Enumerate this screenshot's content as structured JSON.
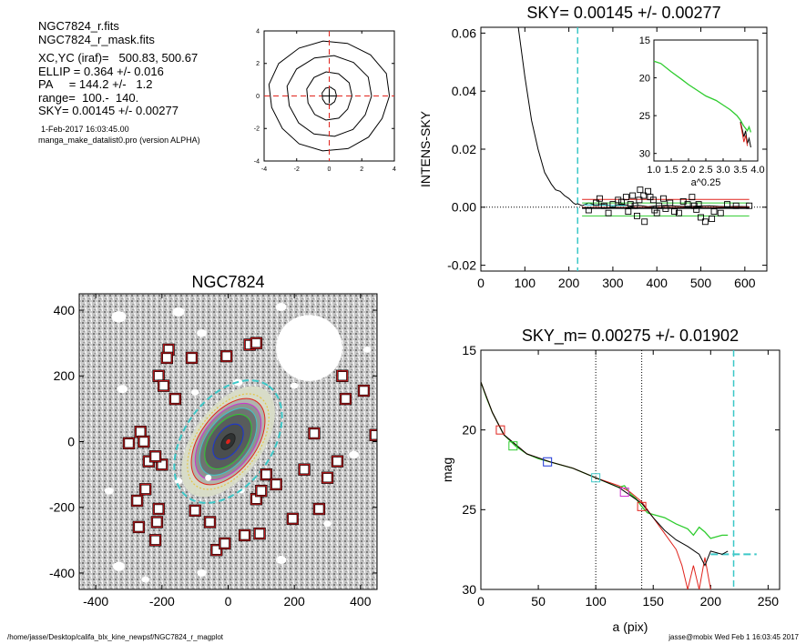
{
  "info": {
    "lines": [
      "NGC7824_r.fits",
      "NGC7824_r_mask.fits",
      "XC,YC (iraf)=   500.83, 500.67",
      "ELLIP = 0.364 +/- 0.016",
      "PA     = 144.2 +/-   1.2",
      "range=  100.-  140.",
      "SKY= 0.00145 +/- 0.00277"
    ],
    "date": "1-Feb-2017 16:03:45.00",
    "program": "manga_make_datalist0.pro (version ALPHA)"
  },
  "footer": {
    "path": "/home/jasse/Desktop/califa_blx_kine_newpsf/NGC7824_r_magplot",
    "stamp": "jasse@mobix  Wed Feb  1 16:03:45 2017"
  },
  "colors": {
    "red": "#e0231c",
    "green": "#2ecc2e",
    "cyan": "#3cc8c8",
    "black": "#000000",
    "blue": "#1a35d6",
    "magenta": "#d030d0"
  },
  "chart_data": [
    {
      "type": "contour",
      "id": "centroid",
      "xlim": [
        -4,
        4
      ],
      "ylim": [
        -4,
        4
      ],
      "xticks": [
        -4,
        -2,
        0,
        2,
        4
      ],
      "yticks": [
        -4,
        -2,
        0,
        2,
        4
      ],
      "crosshair": {
        "x": 0,
        "y": 0,
        "color": "red",
        "style": "dashed"
      },
      "contours": [
        {
          "rx": 0.45,
          "ry": 0.55
        },
        {
          "rx": 1.4,
          "ry": 1.5
        },
        {
          "rx": 2.6,
          "ry": 2.5
        },
        {
          "rx": 3.7,
          "ry": 3.4
        }
      ]
    },
    {
      "type": "scatter",
      "id": "sky",
      "title": "SKY= 0.00145 +/- 0.00277",
      "xlabel": "",
      "ylabel": "INTENS-SKY",
      "xlim": [
        0,
        650
      ],
      "ylim": [
        -0.022,
        0.062
      ],
      "xticks": [
        0,
        100,
        200,
        300,
        400,
        500,
        600
      ],
      "yticks": [
        -0.02,
        0.0,
        0.02,
        0.04,
        0.06
      ],
      "ytick_labels": [
        "-0.02",
        "0.00",
        "0.02",
        "0.04",
        "0.06"
      ],
      "sky_level": 0.00145,
      "sky_err": 0.00277,
      "cyan_vline": 220,
      "profile": [
        [
          85,
          0.062
        ],
        [
          100,
          0.045
        ],
        [
          115,
          0.03
        ],
        [
          130,
          0.02
        ],
        [
          145,
          0.012
        ],
        [
          160,
          0.008
        ],
        [
          170,
          0.006
        ],
        [
          180,
          0.0055
        ],
        [
          190,
          0.004
        ],
        [
          200,
          0.003
        ],
        [
          210,
          0.0015
        ],
        [
          215,
          0.001
        ],
        [
          220,
          0.0012
        ],
        [
          230,
          0.0005
        ],
        [
          245,
          0.0015
        ],
        [
          260,
          0.0008
        ],
        [
          280,
          0.001
        ],
        [
          300,
          0.0005
        ],
        [
          320,
          0.0012
        ],
        [
          340,
          0.0004
        ],
        [
          360,
          0.0006
        ],
        [
          380,
          0.0002
        ],
        [
          400,
          0.0005
        ],
        [
          420,
          0.0006
        ],
        [
          440,
          0.0004
        ],
        [
          460,
          0.0003
        ],
        [
          480,
          0.0003
        ],
        [
          500,
          0.0004
        ],
        [
          520,
          0.0005
        ],
        [
          540,
          0.0003
        ],
        [
          560,
          0.0002
        ],
        [
          580,
          0.0003
        ],
        [
          610,
          0.0002
        ]
      ],
      "points": [
        [
          245,
          -0.001
        ],
        [
          262,
          0.0015
        ],
        [
          270,
          0.003
        ],
        [
          280,
          0.0005
        ],
        [
          290,
          -0.002
        ],
        [
          300,
          0.001
        ],
        [
          312,
          0.0025
        ],
        [
          320,
          0.0018
        ],
        [
          330,
          0.0035
        ],
        [
          335,
          -0.0015
        ],
        [
          340,
          0.001
        ],
        [
          345,
          0.004
        ],
        [
          350,
          0.0005
        ],
        [
          355,
          -0.003
        ],
        [
          360,
          0.0025
        ],
        [
          362,
          0.006
        ],
        [
          370,
          0.004
        ],
        [
          372,
          -0.005
        ],
        [
          380,
          0.0055
        ],
        [
          385,
          0.0035
        ],
        [
          392,
          0.0025
        ],
        [
          395,
          -0.001
        ],
        [
          400,
          -0.002
        ],
        [
          405,
          0.0005
        ],
        [
          415,
          0.003
        ],
        [
          420,
          -0.0005
        ],
        [
          430,
          0.0015
        ],
        [
          440,
          -0.0015
        ],
        [
          450,
          -0.002
        ],
        [
          460,
          0.002
        ],
        [
          470,
          0.001
        ],
        [
          480,
          0.0035
        ],
        [
          485,
          0.0005
        ],
        [
          490,
          -0.0008
        ],
        [
          495,
          0.001
        ],
        [
          500,
          -0.0035
        ],
        [
          510,
          -0.005
        ],
        [
          525,
          -0.004
        ],
        [
          530,
          -0.0015
        ],
        [
          545,
          -0.002
        ],
        [
          560,
          0.001
        ],
        [
          580,
          0.0005
        ],
        [
          610,
          0.0005
        ]
      ],
      "inset": {
        "xlabel": "a^0.25",
        "xlim": [
          1.0,
          4.0
        ],
        "ylim": [
          15,
          31
        ],
        "xtick_labels": [
          "1.0",
          "1.5",
          "2.0",
          "2.5",
          "3.0",
          "3.5",
          "4.0"
        ],
        "ytick_labels": [
          "15",
          "20",
          "25",
          "30"
        ],
        "yticks": [
          15,
          20,
          25,
          30
        ],
        "green": [
          [
            1.0,
            17.8
          ],
          [
            1.2,
            18.1
          ],
          [
            1.5,
            19.2
          ],
          [
            1.8,
            20.2
          ],
          [
            2.0,
            20.9
          ],
          [
            2.2,
            21.5
          ],
          [
            2.5,
            22.4
          ],
          [
            2.8,
            23.0
          ],
          [
            3.0,
            23.6
          ],
          [
            3.2,
            24.2
          ],
          [
            3.4,
            25.0
          ],
          [
            3.5,
            25.6
          ],
          [
            3.6,
            26.4
          ],
          [
            3.7,
            27.0
          ],
          [
            3.75,
            26.5
          ],
          [
            3.8,
            27.2
          ]
        ],
        "black": [
          [
            3.5,
            25.8
          ],
          [
            3.55,
            26.8
          ],
          [
            3.6,
            27.8
          ],
          [
            3.65,
            27.0
          ],
          [
            3.7,
            28.7
          ],
          [
            3.75,
            28.0
          ],
          [
            3.8,
            29.2
          ]
        ],
        "red": [
          [
            3.5,
            26.0
          ],
          [
            3.55,
            27.2
          ],
          [
            3.6,
            28.5
          ],
          [
            3.65,
            27.6
          ],
          [
            3.7,
            29.0
          ]
        ]
      }
    },
    {
      "type": "image",
      "id": "galaxy",
      "title": "NGC7824",
      "xlim": [
        -450,
        450
      ],
      "ylim": [
        -450,
        450
      ],
      "xticks": [
        -400,
        -200,
        0,
        200,
        400
      ],
      "yticks": [
        -400,
        -200,
        0,
        200,
        400
      ],
      "ellipse": {
        "a": 160,
        "b": 102,
        "pa_deg": 144.2,
        "color": "cyan",
        "style": "dashed"
      },
      "masked_stars": [
        [
          -300,
          -5
        ],
        [
          -265,
          30
        ],
        [
          -240,
          -60
        ],
        [
          -255,
          0
        ],
        [
          -250,
          -145
        ],
        [
          -275,
          -180
        ],
        [
          -210,
          200
        ],
        [
          -195,
          170
        ],
        [
          -200,
          -70
        ],
        [
          -220,
          -45
        ],
        [
          -210,
          -205
        ],
        [
          -215,
          -245
        ],
        [
          -270,
          -260
        ],
        [
          -220,
          -300
        ],
        [
          -180,
          280
        ],
        [
          -185,
          255
        ],
        [
          -160,
          130
        ],
        [
          -110,
          255
        ],
        [
          -100,
          -210
        ],
        [
          -55,
          -245
        ],
        [
          -35,
          -330
        ],
        [
          -10,
          -310
        ],
        [
          -5,
          260
        ],
        [
          50,
          -285
        ],
        [
          65,
          295
        ],
        [
          85,
          300
        ],
        [
          95,
          -280
        ],
        [
          85,
          -175
        ],
        [
          100,
          -150
        ],
        [
          115,
          -100
        ],
        [
          145,
          -130
        ],
        [
          195,
          -235
        ],
        [
          230,
          -85
        ],
        [
          260,
          25
        ],
        [
          275,
          -205
        ],
        [
          300,
          -110
        ],
        [
          330,
          -60
        ],
        [
          345,
          200
        ],
        [
          355,
          130
        ],
        [
          410,
          155
        ],
        [
          445,
          20
        ]
      ],
      "bright_star_disk": {
        "x": 245,
        "y": 285,
        "r": 100
      }
    },
    {
      "type": "line",
      "id": "mag",
      "title": "SKY_m=  0.00275 +/- 0.01902",
      "xlabel": "a (pix)",
      "ylabel": "mag",
      "xlim": [
        0,
        260
      ],
      "ylim": [
        15,
        30
      ],
      "xticks": [
        0,
        50,
        100,
        150,
        200,
        250
      ],
      "yticks": [
        15,
        20,
        25,
        30
      ],
      "inverted_y": true,
      "dotted_vlines": [
        100,
        140
      ],
      "cyan_vline": 220,
      "cyan_hseg": {
        "y": 27.8,
        "x0": 200,
        "x1": 240
      },
      "series": [
        {
          "color": "green",
          "values": [
            [
              0,
              17.0
            ],
            [
              5,
              18.0
            ],
            [
              10,
              18.9
            ],
            [
              15,
              19.6
            ],
            [
              20,
              20.3
            ],
            [
              30,
              21.0
            ],
            [
              40,
              21.5
            ],
            [
              50,
              21.8
            ],
            [
              60,
              22.0
            ],
            [
              70,
              22.2
            ],
            [
              80,
              22.4
            ],
            [
              90,
              22.7
            ],
            [
              100,
              23.0
            ],
            [
              110,
              23.3
            ],
            [
              120,
              23.6
            ],
            [
              125,
              23.5
            ],
            [
              130,
              24.0
            ],
            [
              135,
              24.3
            ],
            [
              140,
              24.8
            ],
            [
              145,
              25.2
            ],
            [
              150,
              25.3
            ],
            [
              160,
              25.5
            ],
            [
              170,
              25.9
            ],
            [
              180,
              26.2
            ],
            [
              185,
              26.6
            ],
            [
              190,
              26.1
            ],
            [
              195,
              26.4
            ],
            [
              200,
              26.8
            ],
            [
              210,
              26.6
            ],
            [
              215,
              26.6
            ]
          ]
        },
        {
          "color": "red",
          "values": [
            [
              0,
              17.0
            ],
            [
              10,
              18.9
            ],
            [
              20,
              20.3
            ],
            [
              40,
              21.5
            ],
            [
              60,
              22.0
            ],
            [
              80,
              22.4
            ],
            [
              100,
              23.0
            ],
            [
              120,
              23.5
            ],
            [
              130,
              23.9
            ],
            [
              140,
              24.5
            ],
            [
              150,
              25.5
            ],
            [
              160,
              26.5
            ],
            [
              170,
              27.5
            ],
            [
              175,
              28.5
            ],
            [
              180,
              30
            ],
            [
              185,
              28.5
            ],
            [
              190,
              30
            ],
            [
              195,
              28.0
            ],
            [
              200,
              30
            ]
          ]
        },
        {
          "color": "black",
          "values": [
            [
              0,
              17.0
            ],
            [
              10,
              18.9
            ],
            [
              20,
              20.3
            ],
            [
              40,
              21.5
            ],
            [
              60,
              22.0
            ],
            [
              80,
              22.4
            ],
            [
              100,
              23.0
            ],
            [
              120,
              23.6
            ],
            [
              140,
              24.6
            ],
            [
              150,
              25.5
            ],
            [
              160,
              26.3
            ],
            [
              170,
              26.9
            ],
            [
              180,
              27.3
            ],
            [
              190,
              27.8
            ],
            [
              195,
              28.5
            ],
            [
              200,
              27.6
            ],
            [
              210,
              27.8
            ],
            [
              215,
              27.6
            ]
          ]
        }
      ],
      "markers": [
        {
          "x": 17,
          "y": 20.0,
          "color": "red"
        },
        {
          "x": 28,
          "y": 21.0,
          "color": "green"
        },
        {
          "x": 58,
          "y": 22.0,
          "color": "blue"
        },
        {
          "x": 100,
          "y": 23.0,
          "color": "cyan"
        },
        {
          "x": 125,
          "y": 23.9,
          "color": "magenta"
        },
        {
          "x": 140,
          "y": 24.8,
          "color": "red"
        }
      ]
    }
  ]
}
